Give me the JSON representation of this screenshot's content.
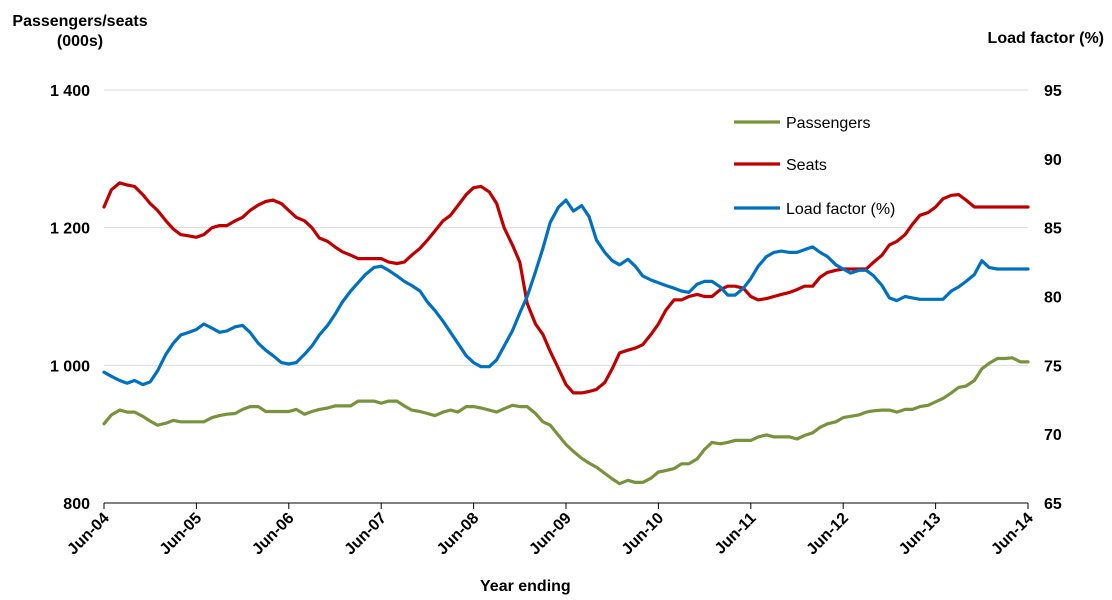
{
  "chart_data": {
    "type": "line",
    "ylabel_left": "Passengers/seats\n(000s)",
    "ylabel_right": "Load factor  (%)",
    "xlabel": "Year ending",
    "x_ticks": [
      "Jun-04",
      "Jun-05",
      "Jun-06",
      "Jun-07",
      "Jun-08",
      "Jun-09",
      "Jun-10",
      "Jun-11",
      "Jun-12",
      "Jun-13",
      "Jun-14"
    ],
    "y_left_ticks": [
      "800",
      "1 000",
      "1 200",
      "1 400"
    ],
    "y_right_ticks": [
      "65",
      "70",
      "75",
      "80",
      "85",
      "90",
      "95"
    ],
    "ylim_left": [
      800,
      1400
    ],
    "ylim_right": [
      65,
      95
    ],
    "legend_position": "top-right",
    "colors": {
      "Passengers": "#77933c",
      "Seats": "#c00000",
      "Load factor (%)": "#0070c0"
    },
    "series": [
      {
        "name": "Passengers",
        "axis": "left",
        "x": [
          2004.5,
          2004.58,
          2004.67,
          2004.75,
          2004.83,
          2004.92,
          2005.0,
          2005.08,
          2005.17,
          2005.25,
          2005.33,
          2005.42,
          2005.5,
          2005.58,
          2005.67,
          2005.75,
          2005.83,
          2005.92,
          2006.0,
          2006.08,
          2006.17,
          2006.25,
          2006.33,
          2006.42,
          2006.5,
          2006.58,
          2006.67,
          2006.75,
          2006.83,
          2006.92,
          2007.0,
          2007.08,
          2007.17,
          2007.25,
          2007.33,
          2007.42,
          2007.5,
          2007.58,
          2007.67,
          2007.75,
          2007.83,
          2007.92,
          2008.0,
          2008.08,
          2008.17,
          2008.25,
          2008.33,
          2008.42,
          2008.5,
          2008.58,
          2008.67,
          2008.75,
          2008.83,
          2008.92,
          2009.0,
          2009.08,
          2009.17,
          2009.25,
          2009.33,
          2009.42,
          2009.5,
          2009.58,
          2009.67,
          2009.75,
          2009.83,
          2009.92,
          2010.0,
          2010.08,
          2010.17,
          2010.25,
          2010.33,
          2010.42,
          2010.5,
          2010.58,
          2010.67,
          2010.75,
          2010.83,
          2010.92,
          2011.0,
          2011.08,
          2011.17,
          2011.25,
          2011.33,
          2011.42,
          2011.5,
          2011.58,
          2011.67,
          2011.75,
          2011.83,
          2011.92,
          2012.0,
          2012.08,
          2012.17,
          2012.25,
          2012.33,
          2012.42,
          2012.5,
          2012.58,
          2012.67,
          2012.75,
          2012.83,
          2012.92,
          2013.0,
          2013.08,
          2013.17,
          2013.25,
          2013.33,
          2013.42,
          2013.5,
          2013.58,
          2013.67,
          2013.75,
          2013.83,
          2013.92,
          2014.0,
          2014.08,
          2014.17,
          2014.25,
          2014.33,
          2014.42,
          2014.5
        ],
        "values": [
          915,
          928,
          935,
          932,
          932,
          926,
          919,
          913,
          916,
          920,
          918,
          918,
          918,
          918,
          924,
          927,
          929,
          930,
          936,
          940,
          940,
          933,
          933,
          933,
          933,
          936,
          929,
          933,
          936,
          938,
          941,
          941,
          941,
          948,
          948,
          948,
          945,
          948,
          948,
          941,
          935,
          933,
          930,
          927,
          932,
          935,
          932,
          940,
          940,
          938,
          935,
          932,
          937,
          942,
          940,
          940,
          930,
          918,
          913,
          898,
          885,
          875,
          865,
          858,
          852,
          843,
          835,
          828,
          833,
          830,
          830,
          836,
          845,
          847,
          850,
          857,
          857,
          864,
          878,
          888,
          886,
          888,
          891,
          891,
          891,
          896,
          899,
          896,
          896,
          896,
          893,
          898,
          902,
          910,
          915,
          918,
          924,
          926,
          928,
          932,
          934,
          935,
          935,
          932,
          936,
          936,
          940,
          942,
          947,
          952,
          960,
          968,
          970,
          978,
          995,
          1003,
          1010,
          1010,
          1011,
          1005,
          1005
        ]
      },
      {
        "name": "Seats",
        "axis": "left",
        "x": [
          2004.5,
          2004.58,
          2004.67,
          2004.75,
          2004.83,
          2004.92,
          2005.0,
          2005.08,
          2005.17,
          2005.25,
          2005.33,
          2005.42,
          2005.5,
          2005.58,
          2005.67,
          2005.75,
          2005.83,
          2005.92,
          2006.0,
          2006.08,
          2006.17,
          2006.25,
          2006.33,
          2006.42,
          2006.5,
          2006.58,
          2006.67,
          2006.75,
          2006.83,
          2006.92,
          2007.0,
          2007.08,
          2007.17,
          2007.25,
          2007.33,
          2007.42,
          2007.5,
          2007.58,
          2007.67,
          2007.75,
          2007.83,
          2007.92,
          2008.0,
          2008.08,
          2008.17,
          2008.25,
          2008.33,
          2008.42,
          2008.5,
          2008.58,
          2008.67,
          2008.75,
          2008.83,
          2008.92,
          2009.0,
          2009.08,
          2009.17,
          2009.25,
          2009.33,
          2009.42,
          2009.5,
          2009.58,
          2009.67,
          2009.75,
          2009.83,
          2009.92,
          2010.0,
          2010.08,
          2010.17,
          2010.25,
          2010.33,
          2010.42,
          2010.5,
          2010.58,
          2010.67,
          2010.75,
          2010.83,
          2010.92,
          2011.0,
          2011.08,
          2011.17,
          2011.25,
          2011.33,
          2011.42,
          2011.5,
          2011.58,
          2011.67,
          2011.75,
          2011.83,
          2011.92,
          2012.0,
          2012.08,
          2012.17,
          2012.25,
          2012.33,
          2012.42,
          2012.5,
          2012.58,
          2012.67,
          2012.75,
          2012.83,
          2012.92,
          2013.0,
          2013.08,
          2013.17,
          2013.25,
          2013.33,
          2013.42,
          2013.5,
          2013.58,
          2013.67,
          2013.75,
          2013.83,
          2013.92,
          2014.0,
          2014.08,
          2014.17,
          2014.25,
          2014.33,
          2014.42,
          2014.5
        ],
        "values": [
          1230,
          1255,
          1265,
          1262,
          1260,
          1248,
          1235,
          1225,
          1210,
          1198,
          1190,
          1188,
          1186,
          1190,
          1200,
          1203,
          1203,
          1210,
          1215,
          1225,
          1233,
          1238,
          1240,
          1235,
          1225,
          1215,
          1210,
          1200,
          1185,
          1180,
          1172,
          1165,
          1160,
          1155,
          1155,
          1155,
          1155,
          1150,
          1148,
          1150,
          1160,
          1170,
          1182,
          1195,
          1210,
          1218,
          1232,
          1248,
          1258,
          1260,
          1252,
          1235,
          1200,
          1175,
          1150,
          1090,
          1060,
          1045,
          1020,
          995,
          972,
          960,
          960,
          962,
          965,
          975,
          995,
          1018,
          1022,
          1025,
          1030,
          1045,
          1060,
          1080,
          1095,
          1095,
          1100,
          1103,
          1100,
          1100,
          1110,
          1115,
          1115,
          1112,
          1100,
          1095,
          1097,
          1100,
          1103,
          1106,
          1110,
          1115,
          1115,
          1128,
          1135,
          1138,
          1140,
          1140,
          1140,
          1140,
          1150,
          1160,
          1175,
          1180,
          1190,
          1205,
          1218,
          1222,
          1230,
          1242,
          1247,
          1248,
          1240,
          1230,
          1230,
          1230,
          1230,
          1230,
          1230,
          1230,
          1230
        ]
      },
      {
        "name": "Load factor (%)",
        "axis": "right",
        "x": [
          2004.5,
          2004.58,
          2004.67,
          2004.75,
          2004.83,
          2004.92,
          2005.0,
          2005.08,
          2005.17,
          2005.25,
          2005.33,
          2005.42,
          2005.5,
          2005.58,
          2005.67,
          2005.75,
          2005.83,
          2005.92,
          2006.0,
          2006.08,
          2006.17,
          2006.25,
          2006.33,
          2006.42,
          2006.5,
          2006.58,
          2006.67,
          2006.75,
          2006.83,
          2006.92,
          2007.0,
          2007.08,
          2007.17,
          2007.25,
          2007.33,
          2007.42,
          2007.5,
          2007.58,
          2007.67,
          2007.75,
          2007.83,
          2007.92,
          2008.0,
          2008.08,
          2008.17,
          2008.25,
          2008.33,
          2008.42,
          2008.5,
          2008.58,
          2008.67,
          2008.75,
          2008.83,
          2008.92,
          2009.0,
          2009.08,
          2009.17,
          2009.25,
          2009.33,
          2009.42,
          2009.5,
          2009.58,
          2009.67,
          2009.75,
          2009.83,
          2009.92,
          2010.0,
          2010.08,
          2010.17,
          2010.25,
          2010.33,
          2010.42,
          2010.5,
          2010.58,
          2010.67,
          2010.75,
          2010.83,
          2010.92,
          2011.0,
          2011.08,
          2011.17,
          2011.25,
          2011.33,
          2011.42,
          2011.5,
          2011.58,
          2011.67,
          2011.75,
          2011.83,
          2011.92,
          2012.0,
          2012.08,
          2012.17,
          2012.25,
          2012.33,
          2012.42,
          2012.5,
          2012.58,
          2012.67,
          2012.75,
          2012.83,
          2012.92,
          2013.0,
          2013.08,
          2013.17,
          2013.25,
          2013.33,
          2013.42,
          2013.5,
          2013.58,
          2013.67,
          2013.75,
          2013.83,
          2013.92,
          2014.0,
          2014.08,
          2014.17,
          2014.25,
          2014.33,
          2014.42,
          2014.5
        ],
        "values": [
          74.5,
          74.2,
          73.9,
          73.7,
          73.9,
          73.6,
          73.8,
          74.6,
          75.8,
          76.6,
          77.2,
          77.4,
          77.6,
          78.0,
          77.7,
          77.4,
          77.5,
          77.8,
          77.9,
          77.4,
          76.6,
          76.1,
          75.7,
          75.2,
          75.1,
          75.2,
          75.8,
          76.4,
          77.2,
          77.9,
          78.7,
          79.6,
          80.4,
          81.0,
          81.6,
          82.1,
          82.2,
          81.9,
          81.5,
          81.1,
          80.8,
          80.4,
          79.6,
          79.0,
          78.2,
          77.4,
          76.6,
          75.7,
          75.2,
          74.9,
          74.9,
          75.4,
          76.4,
          77.5,
          78.8,
          80.0,
          81.8,
          83.5,
          85.4,
          86.5,
          87.0,
          86.2,
          86.6,
          85.8,
          84.1,
          83.2,
          82.6,
          82.3,
          82.7,
          82.2,
          81.5,
          81.2,
          81.0,
          80.8,
          80.6,
          80.4,
          80.3,
          80.9,
          81.1,
          81.1,
          80.7,
          80.1,
          80.1,
          80.6,
          81.3,
          82.2,
          82.9,
          83.2,
          83.3,
          83.2,
          83.2,
          83.4,
          83.6,
          83.2,
          82.9,
          82.3,
          82.0,
          81.7,
          81.9,
          81.9,
          81.5,
          80.8,
          79.9,
          79.7,
          80.0,
          79.9,
          79.8,
          79.8,
          79.8,
          79.8,
          80.4,
          80.7,
          81.1,
          81.6,
          82.6,
          82.1,
          82.0,
          82.0,
          82.0,
          82.0,
          82.0
        ],
        "_trim": true
      }
    ]
  }
}
